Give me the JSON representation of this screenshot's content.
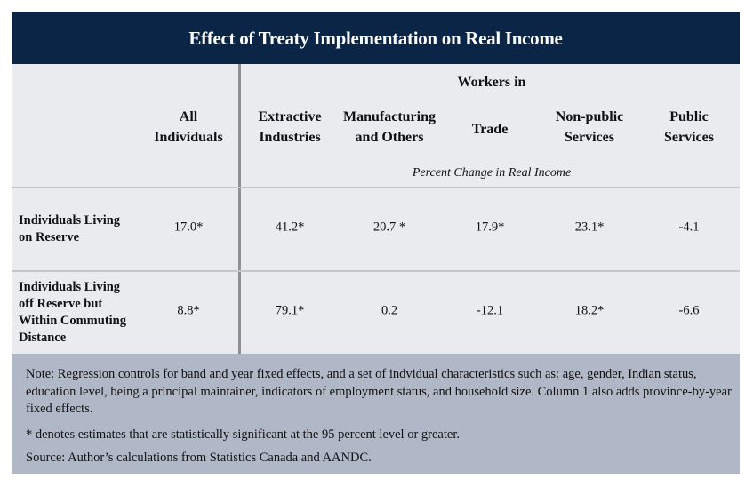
{
  "title": "Effect of Treaty Implementation on Real Income",
  "header": {
    "group_label": "Workers in",
    "subtitle": "Percent Change in Real Income",
    "columns": [
      [
        "All",
        "Individuals"
      ],
      [
        "Extractive",
        "Industries"
      ],
      [
        "Manufacturing",
        "and Others"
      ],
      [
        "Trade"
      ],
      [
        "Non-public",
        "Services"
      ],
      [
        "Public",
        "Services"
      ]
    ]
  },
  "rows": [
    {
      "label": [
        "Individuals Living",
        "on Reserve"
      ],
      "values": [
        "17.0*",
        "41.2*",
        "20.7 *",
        "17.9*",
        "23.1*",
        "-4.1"
      ]
    },
    {
      "label": [
        "Individuals Living",
        "off Reserve but",
        "Within Commuting",
        "Distance"
      ],
      "values": [
        "8.8*",
        "79.1*",
        "0.2",
        "-12.1",
        "18.2*",
        "-6.6"
      ]
    }
  ],
  "notes": {
    "note": "Note: Regression controls for band and year fixed effects, and a set of indvidual characteristics such as: age, gender, Indian status, education level, being a principal maintainer, indicators of employment status, and household size. Column 1 also adds province-by-year fixed effects.",
    "significance": "* denotes estimates that are statistically significant at the 95 percent level or greater.",
    "source": "Source: Author’s calculations from Statistics Canada and AANDC."
  },
  "colors": {
    "title_bg": "#0b2546",
    "table_bg": "#eaebef",
    "note_bg": "#b0b7c6"
  }
}
